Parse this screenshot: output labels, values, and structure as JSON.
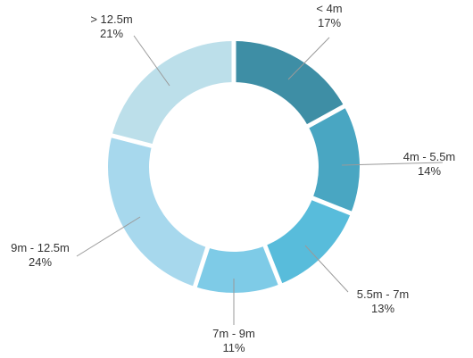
{
  "chart_data": {
    "type": "pie",
    "variant": "donut",
    "start_angle_deg": 0,
    "direction": "clockwise",
    "gap_color": "#ffffff",
    "leader_color": "#9a9a9a",
    "label_color": "#333333",
    "slices": [
      {
        "label": "< 4m",
        "value": 17,
        "display": "17%",
        "color": "#3e8ea5"
      },
      {
        "label": "4m - 5.5m",
        "value": 14,
        "display": "14%",
        "color": "#49a6c2"
      },
      {
        "label": "5.5m - 7m",
        "value": 13,
        "display": "13%",
        "color": "#58bcdb"
      },
      {
        "label": "7m - 9m",
        "value": 11,
        "display": "11%",
        "color": "#7ecbe7"
      },
      {
        "label": "9m - 12.5m",
        "value": 24,
        "display": "24%",
        "color": "#a7d8ed"
      },
      {
        "label": "> 12.5m",
        "value": 21,
        "display": "21%",
        "color": "#bcdfea"
      }
    ]
  }
}
